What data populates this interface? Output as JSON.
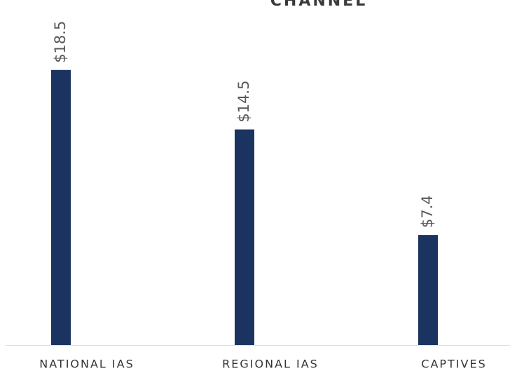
{
  "chart_data": {
    "type": "bar",
    "title": "CHANNEL",
    "categories": [
      "NATIONAL IAS",
      "REGIONAL IAS",
      "CAPTIVES"
    ],
    "values": [
      18.5,
      14.5,
      7.4
    ],
    "value_labels": [
      "$18.5",
      "$14.5",
      "$7.4"
    ],
    "color": "#1b3361"
  }
}
